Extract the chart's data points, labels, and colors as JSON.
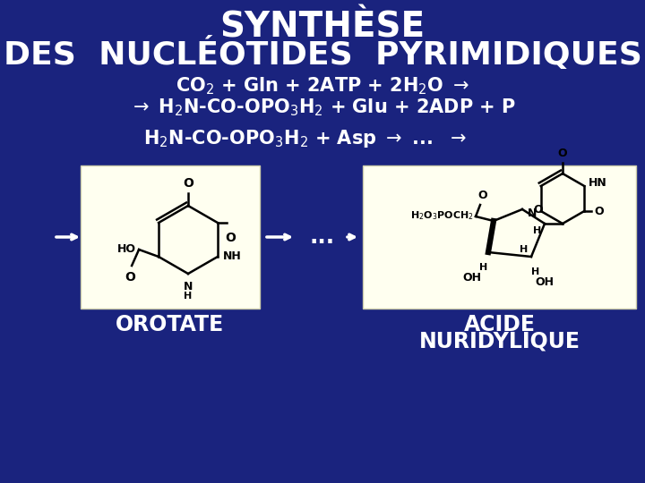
{
  "background_color": "#1a237e",
  "title_line1": "SYNTHÈSE",
  "title_line2": "DES  NUCLÉOTIDES  PYRIMIDIQUES",
  "title_color": "#ffffff",
  "eq1a": "CO$_2$ + Gln + 2ATP + 2H$_2$O $\\rightarrow$",
  "eq1b": "$\\rightarrow$ H$_2$N-CO-OPO$_3$H$_2$ + Glu + 2ADP + P",
  "eq2": "H$_2$N-CO-OPO$_3$H$_2$ + Asp $\\rightarrow$ ...  $\\rightarrow$",
  "text_color": "#ffffff",
  "label_orotate": "OROTATE",
  "label_acide1": "ACIDE",
  "label_acide2": "NURIDYLIQUE",
  "box_bg": "#fffff0"
}
